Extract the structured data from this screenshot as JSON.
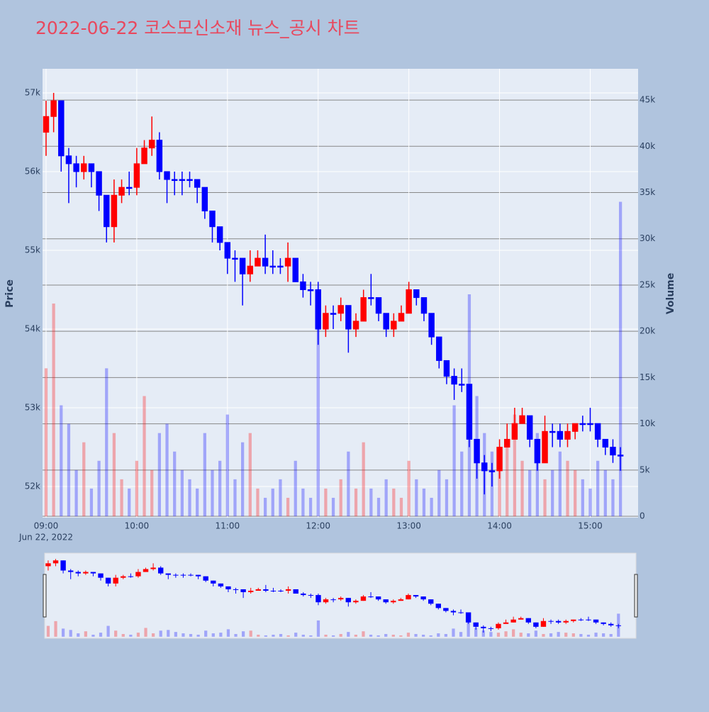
{
  "chart_data": {
    "type": "candlestick",
    "title": "2022-06-22 코스모신소재 뉴스_공시 차트",
    "y_label": "Price",
    "y2_label": "Volume",
    "x_date_label": "Jun 22, 2022",
    "increasing_color": "#ff0000",
    "decreasing_color": "#0000ff",
    "x": [
      "2022-06-22 09:00",
      "2022-06-22 09:05",
      "2022-06-22 09:10",
      "2022-06-22 09:15",
      "2022-06-22 09:20",
      "2022-06-22 09:25",
      "2022-06-22 09:30",
      "2022-06-22 09:35",
      "2022-06-22 09:40",
      "2022-06-22 09:45",
      "2022-06-22 09:50",
      "2022-06-22 09:55",
      "2022-06-22 10:00",
      "2022-06-22 10:05",
      "2022-06-22 10:10",
      "2022-06-22 10:15",
      "2022-06-22 10:20",
      "2022-06-22 10:25",
      "2022-06-22 10:30",
      "2022-06-22 10:35",
      "2022-06-22 10:40",
      "2022-06-22 10:45",
      "2022-06-22 10:50",
      "2022-06-22 10:55",
      "2022-06-22 11:00",
      "2022-06-22 11:05",
      "2022-06-22 11:10",
      "2022-06-22 11:15",
      "2022-06-22 11:20",
      "2022-06-22 11:25",
      "2022-06-22 11:30",
      "2022-06-22 11:35",
      "2022-06-22 11:40",
      "2022-06-22 11:45",
      "2022-06-22 11:50",
      "2022-06-22 11:55",
      "2022-06-22 12:00",
      "2022-06-22 12:05",
      "2022-06-22 12:10",
      "2022-06-22 12:15",
      "2022-06-22 12:20",
      "2022-06-22 12:25",
      "2022-06-22 12:30",
      "2022-06-22 12:35",
      "2022-06-22 12:40",
      "2022-06-22 12:45",
      "2022-06-22 12:50",
      "2022-06-22 12:55",
      "2022-06-22 13:00",
      "2022-06-22 13:05",
      "2022-06-22 13:10",
      "2022-06-22 13:15",
      "2022-06-22 13:20",
      "2022-06-22 13:25",
      "2022-06-22 13:30",
      "2022-06-22 13:35",
      "2022-06-22 13:40",
      "2022-06-22 13:45",
      "2022-06-22 13:50",
      "2022-06-22 13:55",
      "2022-06-22 14:00",
      "2022-06-22 14:05",
      "2022-06-22 14:10",
      "2022-06-22 14:15",
      "2022-06-22 14:20",
      "2022-06-22 14:25",
      "2022-06-22 14:30",
      "2022-06-22 14:35",
      "2022-06-22 14:40",
      "2022-06-22 14:45",
      "2022-06-22 14:50",
      "2022-06-22 14:55",
      "2022-06-22 15:00",
      "2022-06-22 15:05",
      "2022-06-22 15:10",
      "2022-06-22 15:15",
      "2022-06-22 15:20"
    ],
    "open": [
      56500,
      56700,
      56900,
      56200,
      56100,
      56000,
      56100,
      56000,
      55700,
      55300,
      55700,
      55800,
      55800,
      56100,
      56300,
      56400,
      56000,
      55900,
      55900,
      55900,
      55900,
      55800,
      55500,
      55300,
      55100,
      54900,
      54900,
      54700,
      54800,
      54900,
      54800,
      54800,
      54800,
      54900,
      54600,
      54500,
      54500,
      54000,
      54200,
      54200,
      54300,
      54000,
      54100,
      54400,
      54400,
      54200,
      54000,
      54100,
      54200,
      54500,
      54400,
      54200,
      53900,
      53600,
      53400,
      53300,
      53300,
      52600,
      52300,
      52200,
      52200,
      52500,
      52600,
      52800,
      52900,
      52600,
      52300,
      52700,
      52700,
      52600,
      52700,
      52800,
      52800,
      52800,
      52600,
      52500,
      52400
    ],
    "high": [
      56900,
      57000,
      56900,
      56300,
      56200,
      56200,
      56100,
      56000,
      55700,
      55900,
      55900,
      56000,
      56300,
      56400,
      56700,
      56500,
      56000,
      56000,
      56000,
      56000,
      55900,
      55800,
      55500,
      55300,
      55100,
      55000,
      54900,
      55000,
      55000,
      55200,
      55000,
      54900,
      55100,
      54900,
      54700,
      54600,
      54600,
      54300,
      54300,
      54400,
      54300,
      54200,
      54500,
      54700,
      54400,
      54200,
      54200,
      54300,
      54600,
      54500,
      54400,
      54200,
      53900,
      53600,
      53500,
      53500,
      53300,
      52600,
      52400,
      52300,
      52600,
      52800,
      53000,
      53000,
      52900,
      52600,
      52900,
      52800,
      52800,
      52800,
      52800,
      52900,
      53000,
      52800,
      52600,
      52600,
      52500
    ],
    "low": [
      56200,
      56500,
      56000,
      55600,
      55800,
      55900,
      55800,
      55500,
      55100,
      55100,
      55600,
      55700,
      55700,
      56100,
      56200,
      55900,
      55600,
      55700,
      55700,
      55800,
      55600,
      55400,
      55100,
      55000,
      54700,
      54600,
      54300,
      54600,
      54800,
      54700,
      54700,
      54700,
      54600,
      54600,
      54400,
      54300,
      53800,
      53900,
      54000,
      54100,
      53700,
      53900,
      54100,
      54300,
      54100,
      53900,
      53900,
      54100,
      54200,
      54300,
      54100,
      53800,
      53500,
      53300,
      53100,
      53200,
      52500,
      52100,
      51900,
      52000,
      52100,
      52500,
      52600,
      52800,
      52500,
      52200,
      52300,
      52500,
      52500,
      52500,
      52600,
      52700,
      52700,
      52500,
      52400,
      52300,
      52200
    ],
    "close": [
      56700,
      56900,
      56200,
      56100,
      56000,
      56100,
      56000,
      55700,
      55300,
      55700,
      55800,
      55800,
      56100,
      56300,
      56400,
      56000,
      55900,
      55900,
      55900,
      55900,
      55800,
      55500,
      55300,
      55100,
      54900,
      54900,
      54700,
      54800,
      54900,
      54800,
      54800,
      54800,
      54900,
      54600,
      54500,
      54500,
      54000,
      54200,
      54200,
      54300,
      54000,
      54100,
      54400,
      54400,
      54200,
      54000,
      54100,
      54200,
      54500,
      54400,
      54200,
      53900,
      53600,
      53400,
      53300,
      53300,
      52600,
      52300,
      52200,
      52200,
      52500,
      52600,
      52800,
      52900,
      52600,
      52300,
      52700,
      52700,
      52600,
      52700,
      52800,
      52800,
      52800,
      52600,
      52500,
      52400,
      52400
    ],
    "volume": [
      16000,
      23000,
      12000,
      10000,
      5000,
      8000,
      3000,
      6000,
      16000,
      9000,
      4000,
      3000,
      6000,
      13000,
      5000,
      9000,
      10000,
      7000,
      5000,
      4000,
      3000,
      9000,
      5000,
      6000,
      11000,
      4000,
      8000,
      9000,
      3000,
      2000,
      3000,
      4000,
      2000,
      6000,
      3000,
      2000,
      24000,
      3000,
      2000,
      4000,
      7000,
      3000,
      8000,
      3000,
      2000,
      4000,
      3000,
      2000,
      6000,
      4000,
      3000,
      2000,
      5000,
      4000,
      12000,
      7000,
      24000,
      13000,
      9000,
      7000,
      6000,
      8000,
      11000,
      6000,
      5000,
      9000,
      4000,
      5000,
      7000,
      6000,
      5000,
      4000,
      3000,
      6000,
      5000,
      4000,
      34000
    ],
    "xlim": [
      "2022-06-22 08:57:40",
      "2022-06-22 15:31:40"
    ],
    "xticks": [
      {
        "value": "2022-06-22 09:00",
        "label": "09:00"
      },
      {
        "value": "2022-06-22 10:00",
        "label": "10:00"
      },
      {
        "value": "2022-06-22 11:00",
        "label": "11:00"
      },
      {
        "value": "2022-06-22 12:00",
        "label": "12:00"
      },
      {
        "value": "2022-06-22 13:00",
        "label": "13:00"
      },
      {
        "value": "2022-06-22 14:00",
        "label": "14:00"
      },
      {
        "value": "2022-06-22 15:00",
        "label": "15:00"
      }
    ],
    "ylim": [
      51604,
      57306
    ],
    "yticks": [
      {
        "value": 52000,
        "label": "52k"
      },
      {
        "value": 53000,
        "label": "53k"
      },
      {
        "value": 54000,
        "label": "54k"
      },
      {
        "value": 55000,
        "label": "55k"
      },
      {
        "value": 56000,
        "label": "56k"
      },
      {
        "value": 57000,
        "label": "57k"
      }
    ],
    "y2lim": [
      -150,
      48380
    ],
    "y2ticks": [
      0,
      {
        "value": 5000,
        "label": "5k"
      },
      {
        "value": 10000,
        "label": "10k"
      },
      {
        "value": 15000,
        "label": "15k"
      },
      {
        "value": 20000,
        "label": "20k"
      },
      {
        "value": 25000,
        "label": "25k"
      },
      {
        "value": 30000,
        "label": "30k"
      },
      {
        "value": 35000,
        "label": "35k"
      },
      {
        "value": 40000,
        "label": "40k"
      },
      {
        "value": 45000,
        "label": "45k"
      }
    ],
    "grid": true,
    "range_slider": true
  }
}
